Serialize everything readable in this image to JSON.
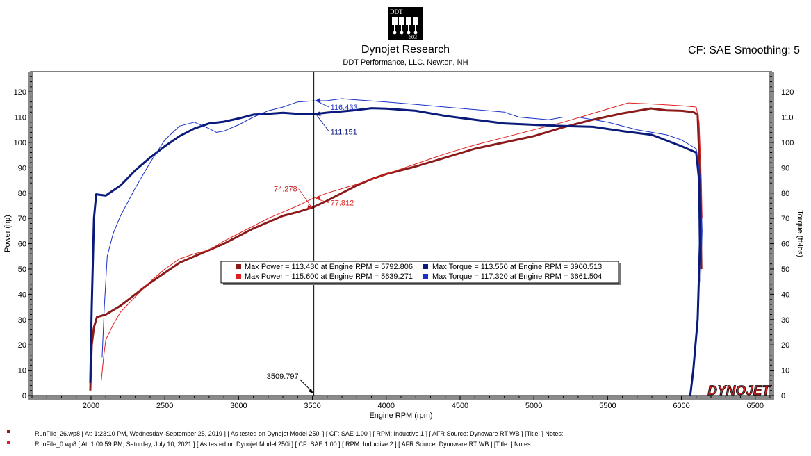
{
  "header": {
    "logo_text_top": "DDT",
    "logo_text_bottom": "603",
    "title": "Dynojet Research",
    "subtitle": "DDT Performance, LLC. Newton, NH",
    "correction": "CF: SAE Smoothing: 5"
  },
  "brand": {
    "watermark": "DYNOJET"
  },
  "chart_data": {
    "type": "line",
    "xlabel": "Engine RPM (rpm)",
    "ylabel_left": "Power (hp)",
    "ylabel_right": "Torque (ft-lbs)",
    "xlim": [
      1600,
      6600
    ],
    "ylim": [
      0,
      128
    ],
    "x_ticks": [
      2000,
      2500,
      3000,
      3500,
      4000,
      4500,
      5000,
      5500,
      6000,
      6500
    ],
    "y_ticks": [
      0,
      10,
      20,
      30,
      40,
      50,
      60,
      70,
      80,
      90,
      100,
      110,
      120
    ],
    "grid": false,
    "cursor": {
      "rpm": 3509.797,
      "rpm_label": "3509.797",
      "labels": [
        {
          "text": "116.433",
          "series": "torque_0"
        },
        {
          "text": "111.151",
          "series": "torque_26"
        },
        {
          "text": "74.278",
          "series": "power_26"
        },
        {
          "text": "77.812",
          "series": "power_0"
        }
      ]
    },
    "series": [
      {
        "id": "power_26",
        "color": "#8b1a1a",
        "width": 3,
        "points": [
          [
            1995,
            2
          ],
          [
            2005,
            20
          ],
          [
            2020,
            27
          ],
          [
            2040,
            31
          ],
          [
            2100,
            32
          ],
          [
            2200,
            35.5
          ],
          [
            2300,
            40
          ],
          [
            2400,
            44.5
          ],
          [
            2500,
            48.5
          ],
          [
            2600,
            52.5
          ],
          [
            2700,
            55
          ],
          [
            2800,
            57.5
          ],
          [
            2900,
            60
          ],
          [
            3000,
            63
          ],
          [
            3100,
            66
          ],
          [
            3200,
            68.5
          ],
          [
            3300,
            71
          ],
          [
            3400,
            72.5
          ],
          [
            3500,
            74.3
          ],
          [
            3600,
            77
          ],
          [
            3700,
            80
          ],
          [
            3800,
            83
          ],
          [
            3900,
            85.5
          ],
          [
            4000,
            87.5
          ],
          [
            4200,
            90.5
          ],
          [
            4400,
            94
          ],
          [
            4600,
            97.5
          ],
          [
            4800,
            100
          ],
          [
            5000,
            102.5
          ],
          [
            5200,
            106
          ],
          [
            5400,
            109
          ],
          [
            5600,
            111.5
          ],
          [
            5793,
            113.43
          ],
          [
            5900,
            112.7
          ],
          [
            6000,
            112.5
          ],
          [
            6080,
            112
          ],
          [
            6110,
            111
          ],
          [
            6120,
            95
          ],
          [
            6130,
            70
          ],
          [
            6135,
            50
          ]
        ]
      },
      {
        "id": "power_0",
        "color": "#e02020",
        "width": 1,
        "points": [
          [
            2070,
            6
          ],
          [
            2085,
            15
          ],
          [
            2100,
            22
          ],
          [
            2150,
            28
          ],
          [
            2200,
            33
          ],
          [
            2300,
            39
          ],
          [
            2400,
            45
          ],
          [
            2500,
            50
          ],
          [
            2600,
            54
          ],
          [
            2700,
            56
          ],
          [
            2800,
            57.5
          ],
          [
            2900,
            61
          ],
          [
            3000,
            64
          ],
          [
            3100,
            67
          ],
          [
            3200,
            70
          ],
          [
            3300,
            72.5
          ],
          [
            3400,
            75
          ],
          [
            3500,
            77.8
          ],
          [
            3600,
            80
          ],
          [
            3800,
            83.5
          ],
          [
            4000,
            87.5
          ],
          [
            4200,
            91.5
          ],
          [
            4400,
            95.5
          ],
          [
            4600,
            99
          ],
          [
            4800,
            102
          ],
          [
            5000,
            105
          ],
          [
            5200,
            108
          ],
          [
            5400,
            111.5
          ],
          [
            5639,
            115.6
          ],
          [
            5800,
            115.2
          ],
          [
            6000,
            114.5
          ],
          [
            6100,
            114
          ],
          [
            6120,
            108
          ],
          [
            6135,
            85
          ],
          [
            6140,
            70
          ]
        ]
      },
      {
        "id": "torque_26",
        "color": "#0a1a7a",
        "width": 3,
        "points": [
          [
            1995,
            5
          ],
          [
            2005,
            35
          ],
          [
            2020,
            70
          ],
          [
            2035,
            79.5
          ],
          [
            2100,
            79
          ],
          [
            2150,
            81
          ],
          [
            2200,
            83
          ],
          [
            2250,
            86
          ],
          [
            2300,
            89
          ],
          [
            2400,
            94
          ],
          [
            2500,
            98.5
          ],
          [
            2600,
            102.5
          ],
          [
            2700,
            105.5
          ],
          [
            2800,
            107.5
          ],
          [
            2900,
            108.2
          ],
          [
            3000,
            109.5
          ],
          [
            3100,
            111
          ],
          [
            3200,
            111.3
          ],
          [
            3300,
            111.7
          ],
          [
            3400,
            111.3
          ],
          [
            3510,
            111.15
          ],
          [
            3600,
            111.8
          ],
          [
            3700,
            112.3
          ],
          [
            3800,
            112.8
          ],
          [
            3900,
            113.55
          ],
          [
            4000,
            113.4
          ],
          [
            4200,
            112.5
          ],
          [
            4400,
            110.5
          ],
          [
            4600,
            109
          ],
          [
            4800,
            107.5
          ],
          [
            5000,
            107
          ],
          [
            5200,
            106.5
          ],
          [
            5400,
            106.2
          ],
          [
            5600,
            104.5
          ],
          [
            5800,
            103
          ],
          [
            6000,
            98.5
          ],
          [
            6100,
            96
          ],
          [
            6120,
            85
          ],
          [
            6125,
            60
          ],
          [
            6110,
            30
          ],
          [
            6080,
            10
          ],
          [
            6060,
            0
          ]
        ]
      },
      {
        "id": "torque_0",
        "color": "#1a30c8",
        "width": 1,
        "points": [
          [
            2075,
            15
          ],
          [
            2090,
            35
          ],
          [
            2110,
            55
          ],
          [
            2150,
            64
          ],
          [
            2200,
            71
          ],
          [
            2300,
            82
          ],
          [
            2400,
            92
          ],
          [
            2500,
            101
          ],
          [
            2600,
            106.5
          ],
          [
            2700,
            108
          ],
          [
            2800,
            105.5
          ],
          [
            2850,
            104
          ],
          [
            2900,
            104.5
          ],
          [
            3000,
            107
          ],
          [
            3100,
            110
          ],
          [
            3200,
            112.5
          ],
          [
            3300,
            114
          ],
          [
            3400,
            116
          ],
          [
            3500,
            116.4
          ],
          [
            3600,
            116.5
          ],
          [
            3700,
            117.3
          ],
          [
            3800,
            116.8
          ],
          [
            4000,
            116
          ],
          [
            4200,
            115
          ],
          [
            4400,
            114
          ],
          [
            4600,
            113
          ],
          [
            4800,
            112
          ],
          [
            4900,
            110
          ],
          [
            5000,
            109.5
          ],
          [
            5100,
            109
          ],
          [
            5200,
            110
          ],
          [
            5300,
            110
          ],
          [
            5500,
            108
          ],
          [
            5700,
            105
          ],
          [
            5900,
            103
          ],
          [
            6000,
            101
          ],
          [
            6100,
            97.5
          ],
          [
            6130,
            85
          ],
          [
            6140,
            65
          ],
          [
            6130,
            45
          ]
        ]
      }
    ],
    "legend": [
      {
        "color": "#8b1a1a",
        "power": "Max Power = 113.430 at Engine RPM = 5792.806",
        "torque_color": "#0a1a7a",
        "torque": "Max Torque = 113.550 at Engine RPM = 3900.513"
      },
      {
        "color": "#e02020",
        "power": "Max Power = 115.600 at Engine RPM = 5639.271",
        "torque_color": "#1a30c8",
        "torque": "Max Torque = 117.320 at Engine RPM = 3661.504"
      }
    ]
  },
  "footer": {
    "runs": [
      {
        "color": "#8b1a1a",
        "text": "RunFile_26.wp8  [  At: 1:23:10 PM, Wednesday, September 25, 2019  ]  [  As tested on Dynojet Model 250i  ]  [  CF: SAE 1.00  ]  [  RPM: Inductive 1  ]  [  AFR Source: Dynoware RT WB  ]  [Title:  ]   Notes:"
      },
      {
        "color": "#e02020",
        "text": "RunFile_0.wp8  [  At: 1:00:59 PM, Saturday, July 10, 2021  ]  [  As tested on Dynojet Model 250i  ]  [  CF: SAE 1.00  ]  [  RPM: Inductive 2  ]  [  AFR Source: Dynoware RT WB  ]  [Title:  ]   Notes:"
      }
    ]
  }
}
